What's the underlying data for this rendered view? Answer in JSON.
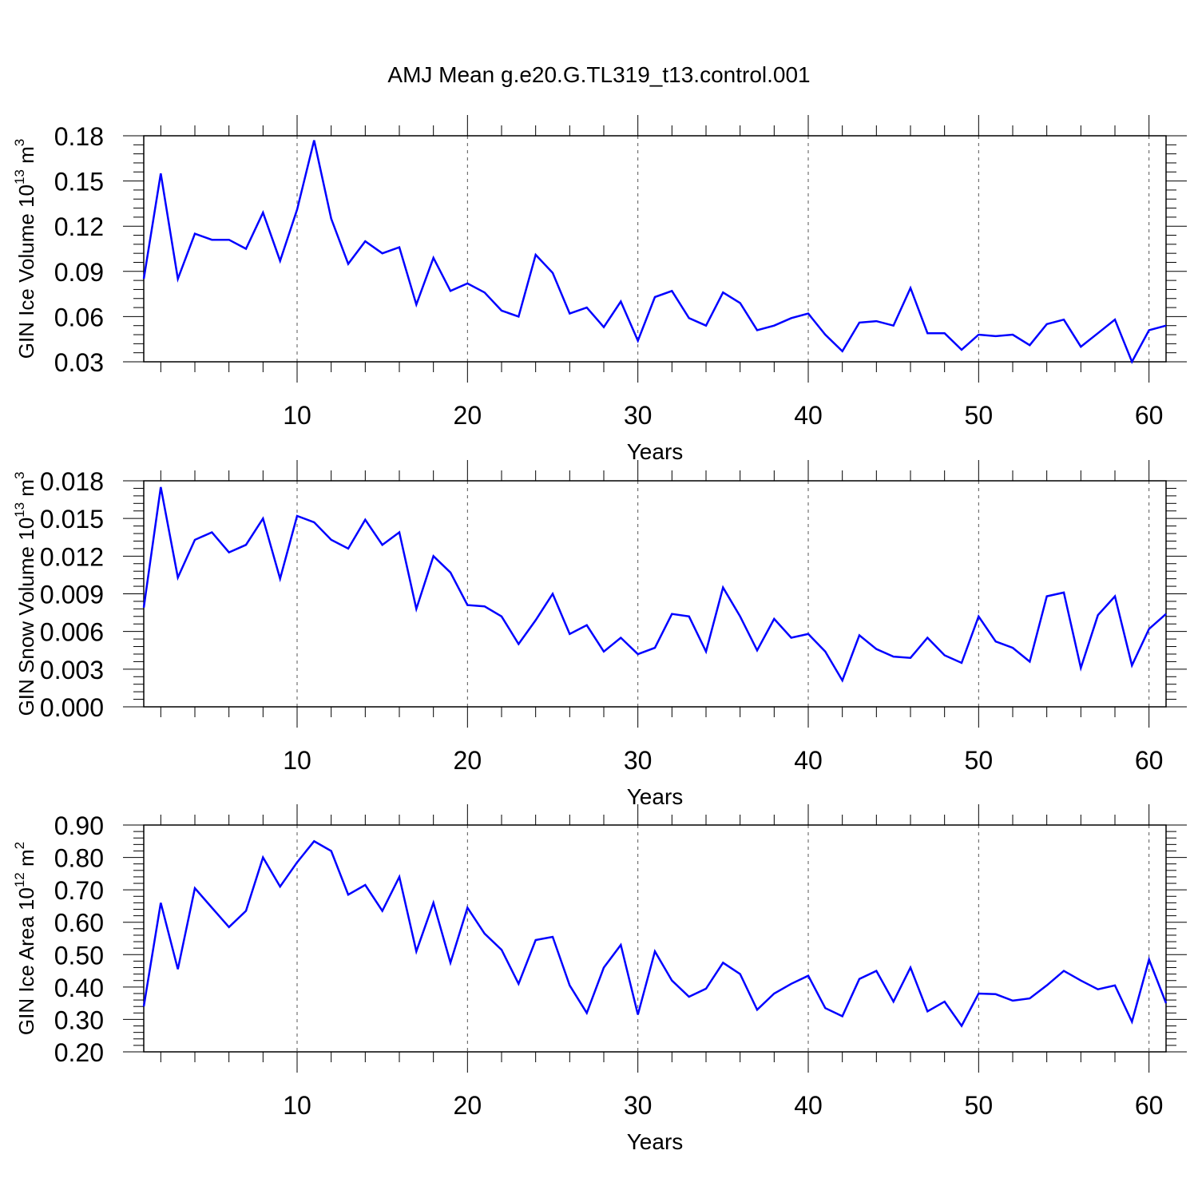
{
  "page_title": "AMJ Mean g.e20.G.TL319_t13.control.001",
  "chart_data": [
    {
      "type": "line",
      "title": "AMJ Mean g.e20.G.TL319_t13.control.001",
      "xlabel": "Years",
      "ylabel_main": "GIN Ice Volume 10",
      "ylabel_exp": "13",
      "ylabel_unit": " m",
      "ylabel_unit_exp": "3",
      "xlim": [
        1,
        61
      ],
      "ylim": [
        0.03,
        0.18
      ],
      "xticks": [
        10,
        20,
        30,
        40,
        50,
        60
      ],
      "yticks": [
        0.03,
        0.06,
        0.09,
        0.12,
        0.15,
        0.18
      ],
      "ytick_labels": [
        "0.03",
        "0.06",
        "0.09",
        "0.12",
        "0.15",
        "0.18"
      ],
      "grid": "vertical dashed at major x ticks",
      "line_color": "#0000ff",
      "x": [
        1,
        2,
        3,
        4,
        5,
        6,
        7,
        8,
        9,
        10,
        11,
        12,
        13,
        14,
        15,
        16,
        17,
        18,
        19,
        20,
        21,
        22,
        23,
        24,
        25,
        26,
        27,
        28,
        29,
        30,
        31,
        32,
        33,
        34,
        35,
        36,
        37,
        38,
        39,
        40,
        41,
        42,
        43,
        44,
        45,
        46,
        47,
        48,
        49,
        50,
        51,
        52,
        53,
        54,
        55,
        56,
        57,
        58,
        59,
        60,
        61
      ],
      "series": [
        {
          "name": "GIN Ice Volume",
          "values": [
            0.085,
            0.155,
            0.085,
            0.115,
            0.111,
            0.111,
            0.105,
            0.129,
            0.097,
            0.131,
            0.177,
            0.125,
            0.095,
            0.11,
            0.102,
            0.106,
            0.068,
            0.099,
            0.077,
            0.082,
            0.076,
            0.064,
            0.06,
            0.101,
            0.089,
            0.062,
            0.066,
            0.053,
            0.07,
            0.044,
            0.073,
            0.077,
            0.059,
            0.054,
            0.076,
            0.069,
            0.051,
            0.054,
            0.059,
            0.062,
            0.048,
            0.037,
            0.056,
            0.057,
            0.054,
            0.079,
            0.049,
            0.049,
            0.038,
            0.048,
            0.047,
            0.048,
            0.041,
            0.055,
            0.058,
            0.04,
            0.049,
            0.058,
            0.03,
            0.051,
            0.054
          ]
        }
      ]
    },
    {
      "type": "line",
      "xlabel": "Years",
      "ylabel_main": "GIN Snow Volume 10",
      "ylabel_exp": "13",
      "ylabel_unit": " m",
      "ylabel_unit_exp": "3",
      "xlim": [
        1,
        61
      ],
      "ylim": [
        0.0,
        0.018
      ],
      "xticks": [
        10,
        20,
        30,
        40,
        50,
        60
      ],
      "yticks": [
        0.0,
        0.003,
        0.006,
        0.009,
        0.012,
        0.015,
        0.018
      ],
      "ytick_labels": [
        "0.000",
        "0.003",
        "0.006",
        "0.009",
        "0.012",
        "0.015",
        "0.018"
      ],
      "grid": "vertical dashed at major x ticks",
      "line_color": "#0000ff",
      "x": [
        1,
        2,
        3,
        4,
        5,
        6,
        7,
        8,
        9,
        10,
        11,
        12,
        13,
        14,
        15,
        16,
        17,
        18,
        19,
        20,
        21,
        22,
        23,
        24,
        25,
        26,
        27,
        28,
        29,
        30,
        31,
        32,
        33,
        34,
        35,
        36,
        37,
        38,
        39,
        40,
        41,
        42,
        43,
        44,
        45,
        46,
        47,
        48,
        49,
        50,
        51,
        52,
        53,
        54,
        55,
        56,
        57,
        58,
        59,
        60,
        61
      ],
      "series": [
        {
          "name": "GIN Snow Volume",
          "values": [
            0.0079,
            0.0175,
            0.0103,
            0.0133,
            0.0139,
            0.0123,
            0.0129,
            0.015,
            0.0102,
            0.0152,
            0.0147,
            0.0133,
            0.0126,
            0.0149,
            0.0129,
            0.0139,
            0.0078,
            0.012,
            0.0107,
            0.0081,
            0.008,
            0.0072,
            0.005,
            0.0069,
            0.009,
            0.0058,
            0.0065,
            0.0044,
            0.0055,
            0.0042,
            0.0047,
            0.0074,
            0.0072,
            0.0044,
            0.0095,
            0.0072,
            0.0045,
            0.007,
            0.0055,
            0.0058,
            0.0044,
            0.0021,
            0.0057,
            0.0046,
            0.004,
            0.0039,
            0.0055,
            0.0041,
            0.0035,
            0.0072,
            0.0052,
            0.0047,
            0.0036,
            0.0088,
            0.0091,
            0.0031,
            0.0073,
            0.0088,
            0.0033,
            0.0062,
            0.0074
          ]
        }
      ]
    },
    {
      "type": "line",
      "xlabel": "Years",
      "ylabel_main": "GIN Ice Area 10",
      "ylabel_exp": "12",
      "ylabel_unit": " m",
      "ylabel_unit_exp": "2",
      "xlim": [
        1,
        61
      ],
      "ylim": [
        0.2,
        0.9
      ],
      "xticks": [
        10,
        20,
        30,
        40,
        50,
        60
      ],
      "yticks": [
        0.2,
        0.3,
        0.4,
        0.5,
        0.6,
        0.7,
        0.8,
        0.9
      ],
      "ytick_labels": [
        "0.20",
        "0.30",
        "0.40",
        "0.50",
        "0.60",
        "0.70",
        "0.80",
        "0.90"
      ],
      "grid": "vertical dashed at major x ticks",
      "line_color": "#0000ff",
      "x": [
        1,
        2,
        3,
        4,
        5,
        6,
        7,
        8,
        9,
        10,
        11,
        12,
        13,
        14,
        15,
        16,
        17,
        18,
        19,
        20,
        21,
        22,
        23,
        24,
        25,
        26,
        27,
        28,
        29,
        30,
        31,
        32,
        33,
        34,
        35,
        36,
        37,
        38,
        39,
        40,
        41,
        42,
        43,
        44,
        45,
        46,
        47,
        48,
        49,
        50,
        51,
        52,
        53,
        54,
        55,
        56,
        57,
        58,
        59,
        60,
        61
      ],
      "series": [
        {
          "name": "GIN Ice Area",
          "values": [
            0.34,
            0.66,
            0.455,
            0.705,
            0.645,
            0.585,
            0.635,
            0.8,
            0.71,
            0.785,
            0.85,
            0.82,
            0.685,
            0.715,
            0.635,
            0.74,
            0.51,
            0.66,
            0.475,
            0.645,
            0.565,
            0.515,
            0.41,
            0.545,
            0.555,
            0.405,
            0.32,
            0.46,
            0.53,
            0.315,
            0.51,
            0.42,
            0.37,
            0.395,
            0.475,
            0.44,
            0.33,
            0.38,
            0.41,
            0.435,
            0.335,
            0.31,
            0.425,
            0.45,
            0.355,
            0.46,
            0.325,
            0.355,
            0.28,
            0.38,
            0.378,
            0.358,
            0.365,
            0.405,
            0.45,
            0.42,
            0.393,
            0.405,
            0.293,
            0.485,
            0.35
          ]
        }
      ]
    }
  ]
}
